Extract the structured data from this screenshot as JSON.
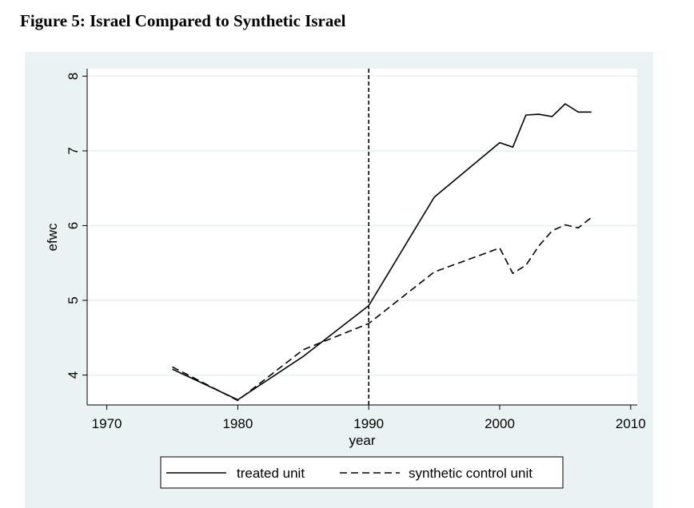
{
  "figure": {
    "title": "Figure 5: Israel Compared to Synthetic Israel"
  },
  "chart_data": {
    "type": "line",
    "title": "",
    "xlabel": "year",
    "ylabel": "efwc",
    "xlim": [
      1968.5,
      2010.5
    ],
    "ylim": [
      3.6,
      8.1
    ],
    "xticks": [
      1970,
      1980,
      1990,
      2000,
      2010
    ],
    "yticks": [
      4,
      5,
      6,
      7,
      8
    ],
    "grid": "horizontal",
    "legend_position": "bottom",
    "vline": {
      "x": 1990,
      "style": "dashed"
    },
    "series": [
      {
        "name": "treated unit",
        "style": "solid",
        "color": "#000000",
        "x": [
          1975,
          1980,
          1985,
          1990,
          1995,
          2000,
          2001,
          2002,
          2003,
          2004,
          2005,
          2006,
          2007
        ],
        "y": [
          4.08,
          3.67,
          4.25,
          4.93,
          6.38,
          7.11,
          7.05,
          7.48,
          7.49,
          7.46,
          7.63,
          7.52,
          7.52
        ]
      },
      {
        "name": "synthetic control unit",
        "style": "dashed",
        "color": "#000000",
        "x": [
          1975,
          1980,
          1985,
          1990,
          1995,
          2000,
          2001,
          2002,
          2003,
          2004,
          2005,
          2006,
          2007
        ],
        "y": [
          4.11,
          3.66,
          4.34,
          4.69,
          5.38,
          5.7,
          5.36,
          5.47,
          5.73,
          5.93,
          6.01,
          5.97,
          6.11
        ]
      }
    ]
  }
}
